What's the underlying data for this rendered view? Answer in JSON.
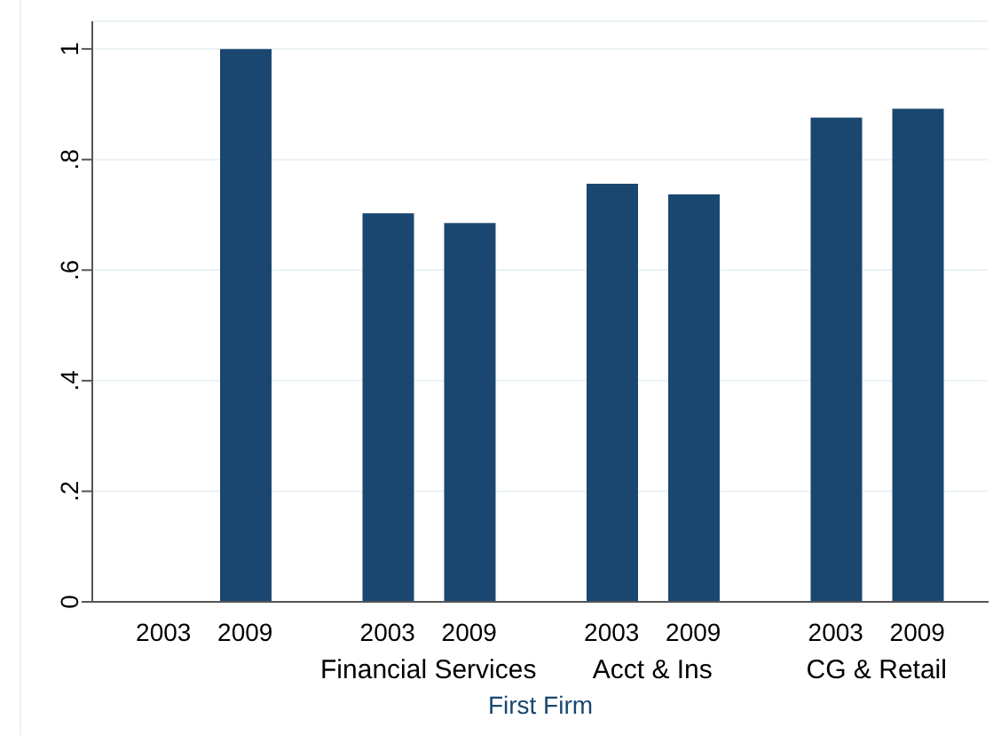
{
  "chart_data": {
    "type": "bar",
    "xlabel": "First Firm",
    "categories": [
      null,
      "Financial Services",
      "Acct & Ins",
      "CG & Retail"
    ],
    "series": [
      {
        "name": "2003",
        "color": "#1a476f",
        "values": [
          null,
          0.703,
          0.756,
          0.876
        ]
      },
      {
        "name": "2009",
        "color": "#1a476f",
        "values": [
          1.0,
          0.685,
          0.737,
          0.892
        ]
      }
    ],
    "ylim": [
      0,
      1.05
    ],
    "yticks": [
      {
        "value": 0,
        "label": "0"
      },
      {
        "value": 0.2,
        "label": ".2"
      },
      {
        "value": 0.4,
        "label": ".4"
      },
      {
        "value": 0.6,
        "label": ".6"
      },
      {
        "value": 0.8,
        "label": ".8"
      },
      {
        "value": 1,
        "label": "1"
      }
    ],
    "grid": "y",
    "legend": false
  }
}
